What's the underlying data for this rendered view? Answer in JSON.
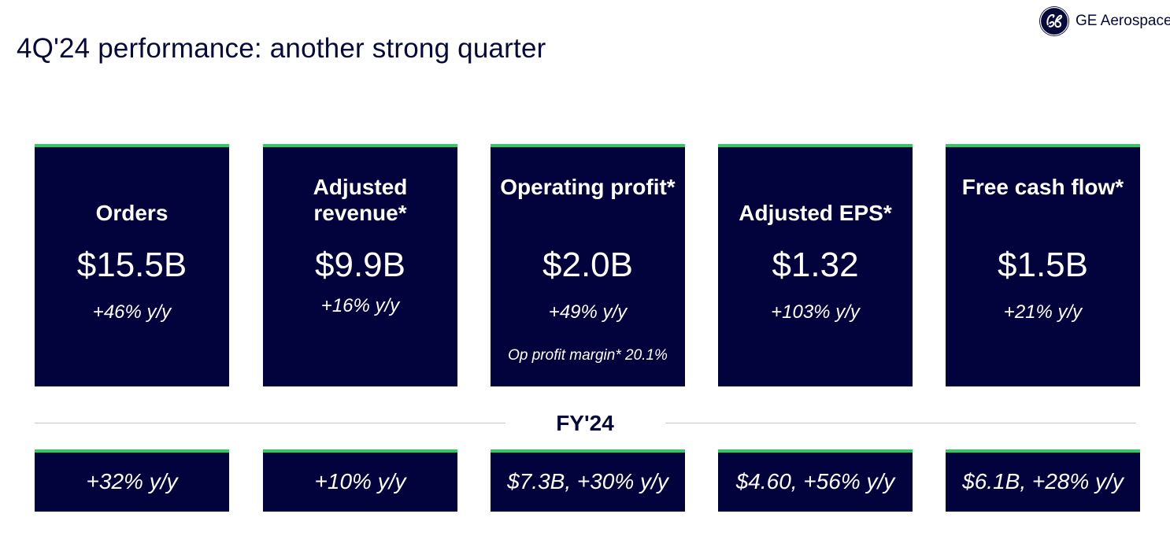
{
  "header": {
    "title": "4Q'24 performance: another strong quarter",
    "brand": "GE Aerospace",
    "logo_icon": "ge-monogram-icon"
  },
  "colors": {
    "card_background": "#02023c",
    "card_accent": "#2ecc5a",
    "title_text": "#050a3a"
  },
  "quarter_cards": [
    {
      "label": "Orders",
      "value": "$15.5B",
      "change": "+46% y/y",
      "note": ""
    },
    {
      "label": "Adjusted revenue*",
      "value": "$9.9B",
      "change": "+16% y/y",
      "note": ""
    },
    {
      "label": "Operating profit*",
      "value": "$2.0B",
      "change": "+49% y/y",
      "note": "Op profit margin* 20.1%"
    },
    {
      "label": "Adjusted EPS*",
      "value": "$1.32",
      "change": "+103% y/y",
      "note": ""
    },
    {
      "label": "Free cash flow*",
      "value": "$1.5B",
      "change": "+21% y/y",
      "note": ""
    }
  ],
  "full_year": {
    "label": "FY'24",
    "values": [
      "+32% y/y",
      "+10% y/y",
      "$7.3B, +30% y/y",
      "$4.60, +56% y/y",
      "$6.1B, +28% y/y"
    ]
  }
}
